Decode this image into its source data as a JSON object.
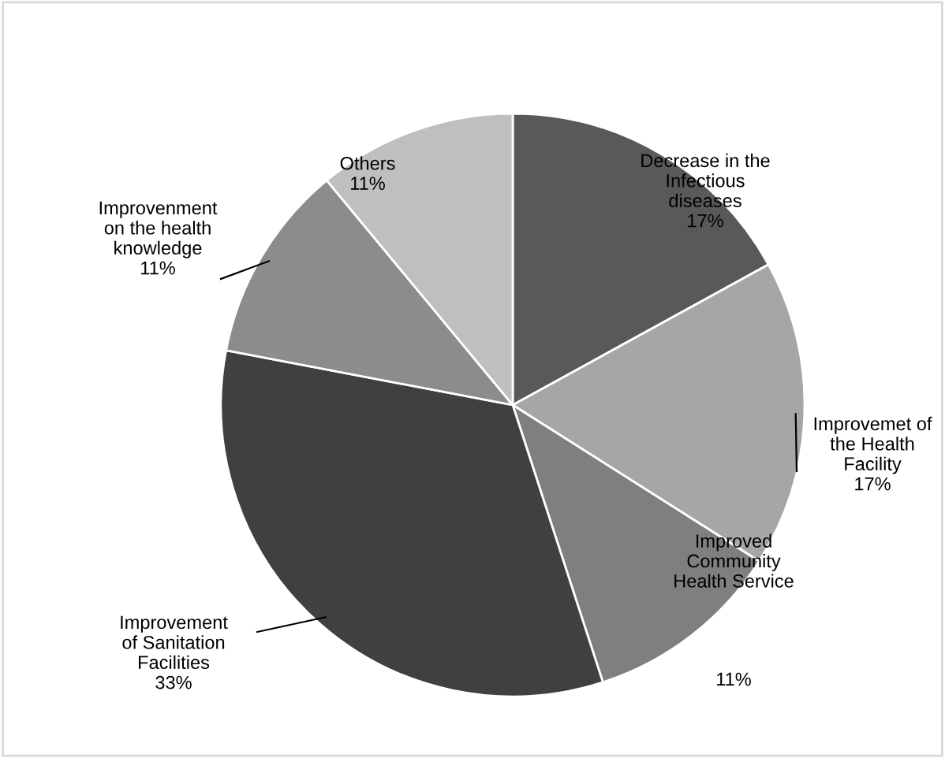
{
  "chart_data": {
    "type": "pie",
    "categories": [
      "Decrease in the\nInfectious\ndiseases",
      "Improvemet of\nthe Health\nFacility",
      "Improved\nCommunity\nHealth Service",
      "Improvement\nof Sanitation\nFacilities",
      "Improvenment\non the health\nknowledge",
      "Others"
    ],
    "values": [
      17,
      17,
      11,
      33,
      11,
      11
    ],
    "value_labels": [
      "17%",
      "17%",
      "11%",
      "33%",
      "11%",
      "11%"
    ],
    "colors": [
      "#595959",
      "#a6a6a6",
      "#7f7f7f",
      "#404040",
      "#8c8c8c",
      "#bfbfbf"
    ]
  }
}
